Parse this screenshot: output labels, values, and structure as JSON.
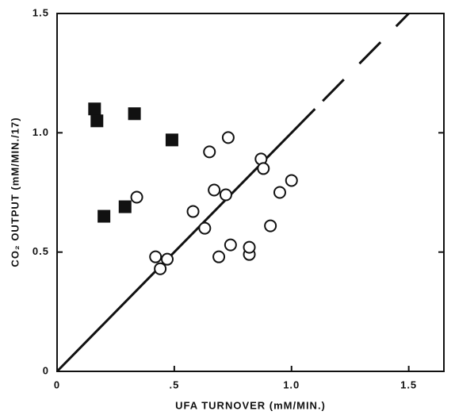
{
  "chart_data": {
    "type": "scatter",
    "x_label": "UFA TURNOVER (mM/MIN.)",
    "y_label": "CO₂ OUTPUT (mM/MIN./17)",
    "xlim": [
      0,
      1.65
    ],
    "ylim": [
      0,
      1.5
    ],
    "xticks": [
      0,
      {
        "value": 0.5,
        "label": ".5"
      },
      {
        "value": 1,
        "label": "1.0"
      },
      1.5
    ],
    "yticks": [
      0,
      0.5,
      {
        "value": 1,
        "label": "1.0"
      },
      1.5
    ],
    "series": [
      {
        "marker": "square",
        "color": "#111111",
        "x": [
          0.16,
          0.17,
          0.33,
          0.49,
          0.2,
          0.29
        ],
        "values": [
          1.1,
          1.05,
          1.08,
          0.97,
          0.65,
          0.69
        ]
      },
      {
        "marker": "circle",
        "color": "#111111",
        "x": [
          0.34,
          0.58,
          0.65,
          0.73,
          0.67,
          0.72,
          0.63,
          0.74,
          0.69,
          0.82,
          0.82,
          0.87,
          0.88,
          0.95,
          1.0,
          0.91,
          0.42,
          0.47,
          0.44
        ],
        "values": [
          0.73,
          0.67,
          0.92,
          0.98,
          0.76,
          0.74,
          0.6,
          0.53,
          0.48,
          0.49,
          0.52,
          0.89,
          0.85,
          0.75,
          0.8,
          0.61,
          0.48,
          0.47,
          0.43
        ]
      }
    ],
    "lines": [
      {
        "style": "solid",
        "x": [
          0,
          1.1
        ],
        "values": [
          0,
          1.1
        ]
      },
      {
        "style": "dashed",
        "x": [
          1.1,
          1.5
        ],
        "values": [
          1.1,
          1.5
        ]
      }
    ]
  }
}
